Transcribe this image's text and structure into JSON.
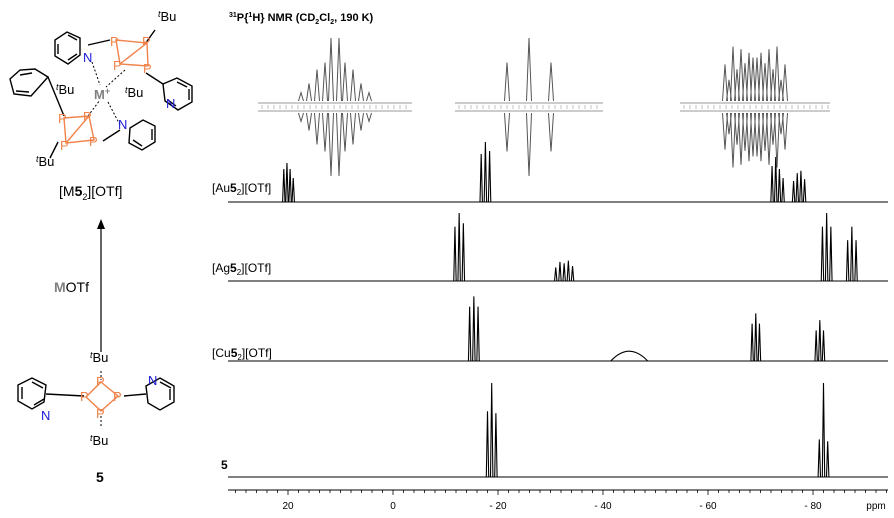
{
  "colors": {
    "phosphorus": "#f0824a",
    "nitrogen": "#1a1ad6",
    "metal": "#808080",
    "trace": "#000000",
    "inset_trace": "#555555"
  },
  "title": {
    "main": "P{ H} NMR (CD Cl , 190 K)",
    "sup_31": "31",
    "sup_1": "1",
    "sub_2": "2"
  },
  "molecule_top": {
    "atoms": {
      "P": "P",
      "N": "N",
      "M": "M",
      "plus": "+",
      "t": "t",
      "Bu": "Bu"
    },
    "label": {
      "open": "[M",
      "num": "5",
      "sub": "2",
      "close": "][OTf]"
    }
  },
  "arrow_label": {
    "metal": "M",
    "rest": "OTf"
  },
  "molecule_bottom": {
    "atoms": {
      "P": "P",
      "N": "N",
      "t": "t",
      "Bu": "Bu"
    },
    "label": "5"
  },
  "chart_data": {
    "type": "line",
    "xlabel": "ppm",
    "xlim": [
      30,
      -95
    ],
    "x_reversed": true,
    "tick_labels": [
      "20",
      "0",
      "- 20",
      "- 40",
      "- 60",
      "- 80",
      "ppm"
    ],
    "tick_values": [
      20,
      0,
      -20,
      -40,
      -60,
      -80
    ],
    "series": [
      {
        "name": "[Au5₂][OTf]",
        "label_pre": "[Au",
        "label_num": "5",
        "label_sub": "2",
        "label_post": "][OTf]",
        "peaks": [
          {
            "shift": 20.8,
            "height": 0.55
          },
          {
            "shift": 20.2,
            "height": 0.65
          },
          {
            "shift": 19.6,
            "height": 0.55
          },
          {
            "shift": 19.0,
            "height": 0.4
          },
          {
            "shift": -16.8,
            "height": 0.8
          },
          {
            "shift": -17.6,
            "height": 1.0
          },
          {
            "shift": -18.4,
            "height": 0.85
          },
          {
            "shift": -72.2,
            "height": 0.6
          },
          {
            "shift": -72.9,
            "height": 0.75
          },
          {
            "shift": -73.6,
            "height": 0.55
          },
          {
            "shift": -74.3,
            "height": 0.4
          },
          {
            "shift": -76.3,
            "height": 0.35
          },
          {
            "shift": -77.0,
            "height": 0.48
          },
          {
            "shift": -77.7,
            "height": 0.52
          },
          {
            "shift": -78.4,
            "height": 0.38
          }
        ]
      },
      {
        "name": "[Ag5₂][OTf]",
        "label_pre": "[Ag",
        "label_num": "5",
        "label_sub": "2",
        "label_post": "][OTf]",
        "peaks": [
          {
            "shift": -11.8,
            "height": 0.8
          },
          {
            "shift": -12.6,
            "height": 1.0
          },
          {
            "shift": -13.4,
            "height": 0.85
          },
          {
            "shift": -31.0,
            "height": 0.2
          },
          {
            "shift": -31.8,
            "height": 0.28
          },
          {
            "shift": -32.6,
            "height": 0.26
          },
          {
            "shift": -33.4,
            "height": 0.3
          },
          {
            "shift": -34.2,
            "height": 0.22
          },
          {
            "shift": -81.8,
            "height": 0.8
          },
          {
            "shift": -82.6,
            "height": 1.0
          },
          {
            "shift": -83.4,
            "height": 0.8
          },
          {
            "shift": -86.6,
            "height": 0.6
          },
          {
            "shift": -87.4,
            "height": 0.8
          },
          {
            "shift": -88.2,
            "height": 0.6
          }
        ]
      },
      {
        "name": "[Cu5₂][OTf]",
        "label_pre": "[Cu",
        "label_num": "5",
        "label_sub": "2",
        "label_post": "][OTf]",
        "peaks": [
          {
            "shift": -14.6,
            "height": 0.8
          },
          {
            "shift": -15.4,
            "height": 0.95
          },
          {
            "shift": -16.2,
            "height": 0.8
          },
          {
            "shift": -45.0,
            "height": 0.2,
            "width": 1.6
          },
          {
            "shift": -68.4,
            "height": 0.55
          },
          {
            "shift": -69.1,
            "height": 0.7
          },
          {
            "shift": -69.8,
            "height": 0.55
          },
          {
            "shift": -80.6,
            "height": 0.45
          },
          {
            "shift": -81.3,
            "height": 0.6
          },
          {
            "shift": -82.0,
            "height": 0.45
          }
        ]
      },
      {
        "name": "5",
        "label_pre": "",
        "label_num": "5",
        "label_sub": "",
        "label_post": "",
        "peaks": [
          {
            "shift": -18.0,
            "height": 0.7
          },
          {
            "shift": -18.8,
            "height": 1.0
          },
          {
            "shift": -19.6,
            "height": 0.68
          },
          {
            "shift": -81.2,
            "height": 0.4
          },
          {
            "shift": -82.0,
            "height": 1.0
          },
          {
            "shift": -82.8,
            "height": 0.38
          }
        ]
      }
    ]
  }
}
